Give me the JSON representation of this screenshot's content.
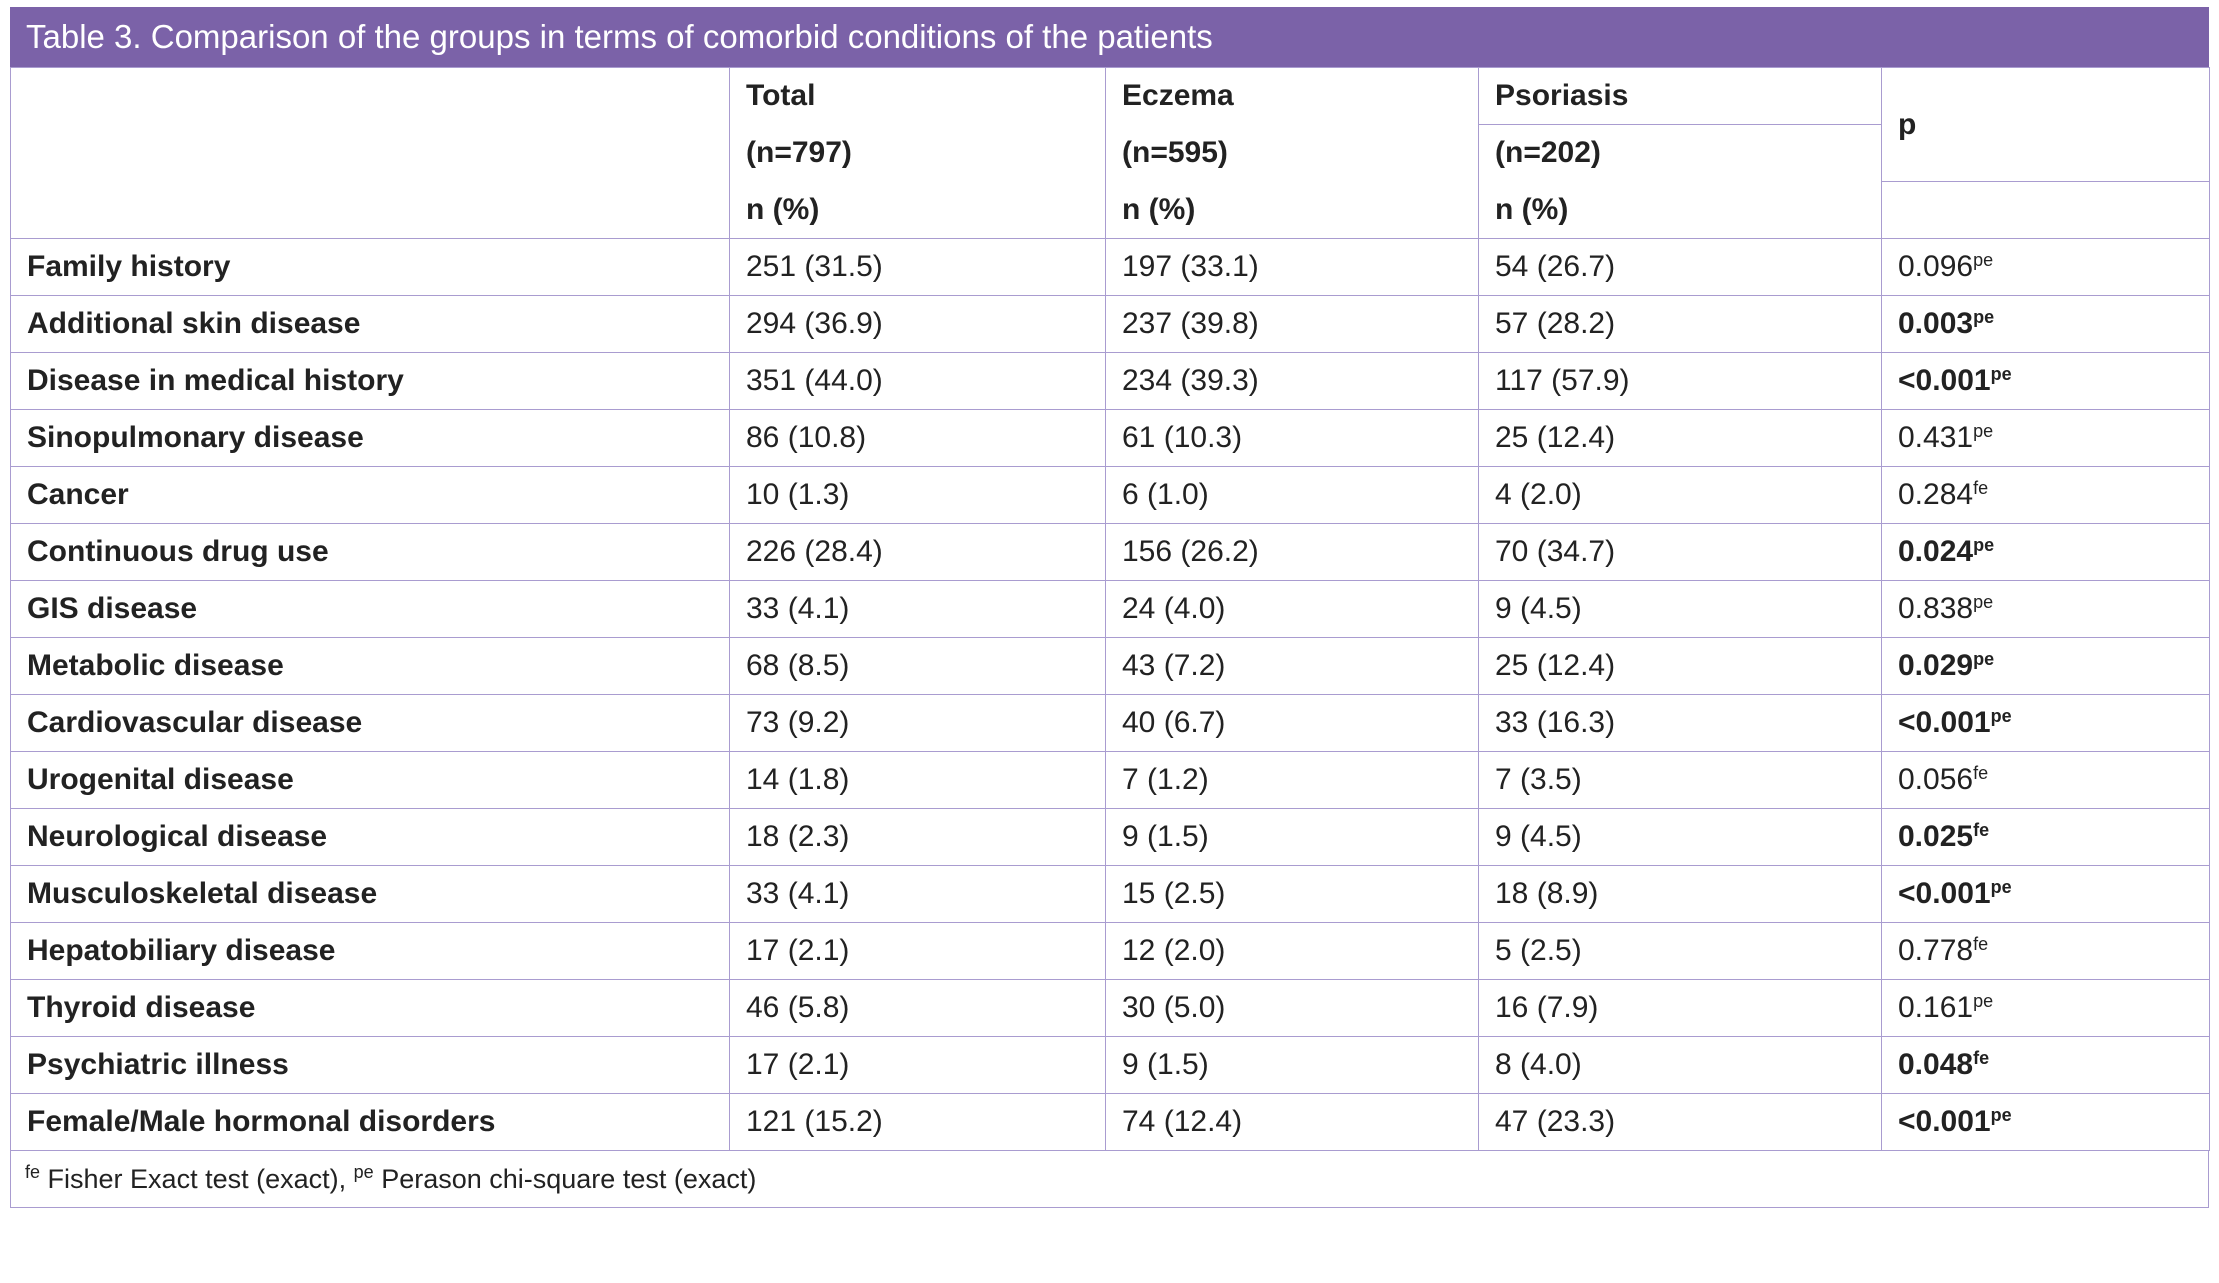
{
  "title": "Table 3. Comparison of the groups in terms of comorbid conditions of the patients",
  "header": {
    "columns": [
      {
        "name": "Total",
        "n": "(n=797)",
        "unit": "n (%)"
      },
      {
        "name": "Eczema",
        "n": "(n=595)",
        "unit": "n (%)"
      },
      {
        "name": "Psoriasis",
        "n": "(n=202)",
        "unit": "n (%)"
      }
    ],
    "p": "p"
  },
  "rows": [
    {
      "label": "Family history",
      "total": "251 (31.5)",
      "eczema": "197 (33.1)",
      "psoriasis": "54 (26.7)",
      "p": "0.096",
      "test": "pe",
      "bold": false
    },
    {
      "label": "Additional skin disease",
      "total": "294 (36.9)",
      "eczema": "237 (39.8)",
      "psoriasis": "57 (28.2)",
      "p": "0.003",
      "test": "pe",
      "bold": true
    },
    {
      "label": "Disease in medical history",
      "total": "351 (44.0)",
      "eczema": "234 (39.3)",
      "psoriasis": "117 (57.9)",
      "p": "<0.001",
      "test": "pe",
      "bold": true
    },
    {
      "label": "Sinopulmonary disease",
      "total": "86 (10.8)",
      "eczema": "61 (10.3)",
      "psoriasis": "25 (12.4)",
      "p": "0.431",
      "test": "pe",
      "bold": false
    },
    {
      "label": "Cancer",
      "total": "10 (1.3)",
      "eczema": "6 (1.0)",
      "psoriasis": "4 (2.0)",
      "p": "0.284",
      "test": "fe",
      "bold": false
    },
    {
      "label": "Continuous drug use",
      "total": "226 (28.4)",
      "eczema": "156 (26.2)",
      "psoriasis": "70 (34.7)",
      "p": "0.024",
      "test": "pe",
      "bold": true
    },
    {
      "label": "GIS disease",
      "total": "33 (4.1)",
      "eczema": "24 (4.0)",
      "psoriasis": "9 (4.5)",
      "p": "0.838",
      "test": "pe",
      "bold": false
    },
    {
      "label": "Metabolic disease",
      "total": "68 (8.5)",
      "eczema": "43 (7.2)",
      "psoriasis": "25 (12.4)",
      "p": "0.029",
      "test": "pe",
      "bold": true
    },
    {
      "label": "Cardiovascular disease",
      "total": "73 (9.2)",
      "eczema": "40 (6.7)",
      "psoriasis": "33 (16.3)",
      "p": "<0.001",
      "test": "pe",
      "bold": true
    },
    {
      "label": "Urogenital disease",
      "total": "14 (1.8)",
      "eczema": "7 (1.2)",
      "psoriasis": "7 (3.5)",
      "p": "0.056",
      "test": "fe",
      "bold": false
    },
    {
      "label": "Neurological disease",
      "total": "18 (2.3)",
      "eczema": "9 (1.5)",
      "psoriasis": "9 (4.5)",
      "p": "0.025",
      "test": "fe",
      "bold": true
    },
    {
      "label": "Musculoskeletal disease",
      "total": "33 (4.1)",
      "eczema": "15 (2.5)",
      "psoriasis": "18 (8.9)",
      "p": "<0.001",
      "test": "pe",
      "bold": true
    },
    {
      "label": "Hepatobiliary disease",
      "total": "17 (2.1)",
      "eczema": "12 (2.0)",
      "psoriasis": "5 (2.5)",
      "p": "0.778",
      "test": "fe",
      "bold": false
    },
    {
      "label": "Thyroid disease",
      "total": "46 (5.8)",
      "eczema": "30 (5.0)",
      "psoriasis": "16 (7.9)",
      "p": "0.161",
      "test": "pe",
      "bold": false
    },
    {
      "label": "Psychiatric illness",
      "total": "17 (2.1)",
      "eczema": "9 (1.5)",
      "psoriasis": "8 (4.0)",
      "p": "0.048",
      "test": "fe",
      "bold": true
    },
    {
      "label": "Female/Male hormonal disorders",
      "total": "121 (15.2)",
      "eczema": "74 (12.4)",
      "psoriasis": "47 (23.3)",
      "p": "<0.001",
      "test": "pe",
      "bold": true
    }
  ],
  "footnote": [
    {
      "mark": "fe",
      "text": "Fisher Exact test (exact),"
    },
    {
      "mark": "pe",
      "text": "Perason chi-square test (exact)"
    }
  ]
}
